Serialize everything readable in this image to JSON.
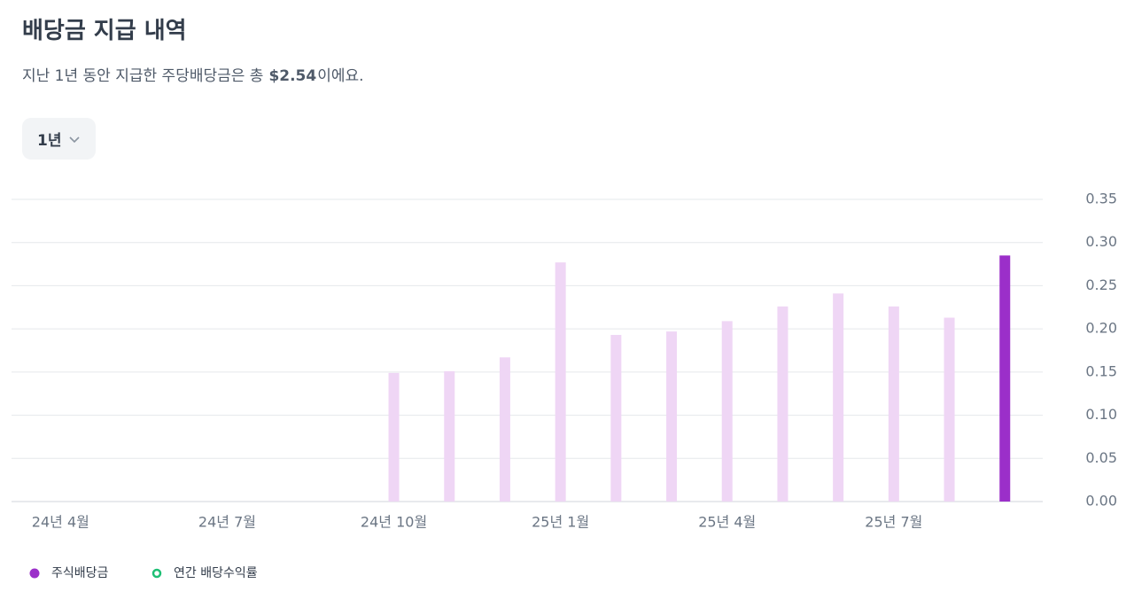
{
  "chart_data": {
    "type": "bar",
    "title": "배당금 지급 내역",
    "subtitle_parts": [
      "지난 1년 동안 지급한 주당배당금은 총",
      "$2.54",
      "이에요."
    ],
    "period_selector": "1년",
    "categories": [
      "24년 4월",
      null,
      null,
      "24년 7월",
      null,
      null,
      "24년 10월",
      null,
      null,
      "25년 1월",
      null,
      null,
      "25년 4월",
      null,
      null,
      "25년 7월",
      null,
      null
    ],
    "series": [
      {
        "name": "주식배당금",
        "color": "#9b2fc9",
        "values": [
          null,
          null,
          null,
          null,
          null,
          null,
          0.149,
          0.151,
          0.167,
          0.277,
          0.193,
          0.197,
          0.209,
          0.226,
          0.241,
          0.226,
          0.213,
          0.285
        ],
        "colors": [
          null,
          null,
          null,
          null,
          null,
          null,
          "#efd6f5",
          "#efd6f5",
          "#efd6f5",
          "#efd6f5",
          "#efd6f5",
          "#efd6f5",
          "#efd6f5",
          "#efd6f5",
          "#efd6f5",
          "#efd6f5",
          "#efd6f5",
          "#9b2fc9"
        ]
      },
      {
        "name": "연간 배당수익률",
        "color": "#1fbf75",
        "values": [
          null,
          null,
          null,
          null,
          null,
          null,
          null,
          null,
          null,
          null,
          null,
          null,
          null,
          null,
          null,
          null,
          null,
          null
        ]
      }
    ],
    "ylim": [
      0,
      0.35
    ],
    "yticks": [
      {
        "value": 0,
        "label": "0.00"
      },
      {
        "value": 0.05,
        "label": "0.05"
      },
      {
        "value": 0.1,
        "label": "0.10"
      },
      {
        "value": 0.15,
        "label": "0.15"
      },
      {
        "value": 0.2,
        "label": "0.20"
      },
      {
        "value": 0.25,
        "label": "0.25"
      },
      {
        "value": 0.3,
        "label": "0.30"
      },
      {
        "value": 0.35,
        "label": "0.35"
      }
    ],
    "grid": true
  }
}
